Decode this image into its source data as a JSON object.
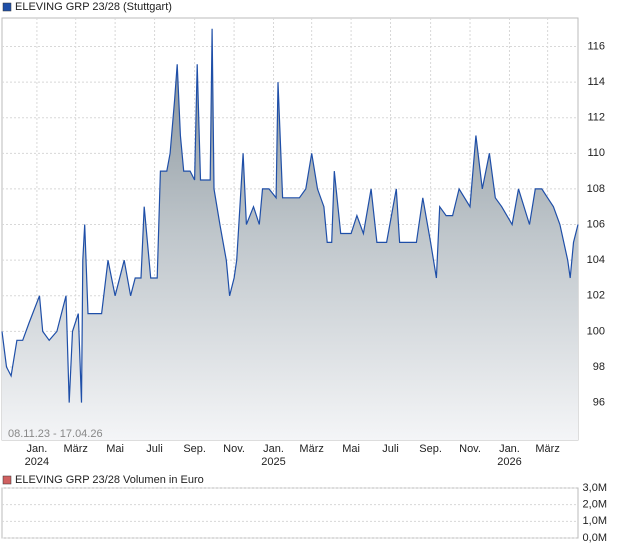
{
  "chart_data": [
    {
      "type": "area",
      "legend": "ELEVING GRP 23/28 (Stuttgart)",
      "range_label": "08.11.23 - 17.04.26",
      "color": "#1f4fa8",
      "grid": true,
      "xlim": [
        "2023-11-08",
        "2026-04-17"
      ],
      "ylim": [
        93.9,
        117.6
      ],
      "yticks": [
        96,
        98,
        100,
        102,
        104,
        106,
        108,
        110,
        112,
        114,
        116
      ],
      "xticks": [
        {
          "value": "2024-01-01",
          "label": "Jan."
        },
        {
          "value": "2024-03-01",
          "label": "März"
        },
        {
          "value": "2024-05-01",
          "label": "Mai"
        },
        {
          "value": "2024-07-01",
          "label": "Juli"
        },
        {
          "value": "2024-09-01",
          "label": "Sep."
        },
        {
          "value": "2024-11-01",
          "label": "Nov."
        },
        {
          "value": "2025-01-01",
          "label": "Jan."
        },
        {
          "value": "2025-03-01",
          "label": "März"
        },
        {
          "value": "2025-05-01",
          "label": "Mai"
        },
        {
          "value": "2025-07-01",
          "label": "Juli"
        },
        {
          "value": "2025-09-01",
          "label": "Sep."
        },
        {
          "value": "2025-11-01",
          "label": "Nov."
        },
        {
          "value": "2026-01-01",
          "label": "Jan."
        },
        {
          "value": "2026-03-01",
          "label": "März"
        }
      ],
      "xtick_years": [
        {
          "value": "2024-01-01",
          "label": "2024"
        },
        {
          "value": "2025-01-01",
          "label": "2025"
        },
        {
          "value": "2026-01-01",
          "label": "2026"
        }
      ],
      "x": [
        "2023-11-08",
        "2023-11-15",
        "2023-11-22",
        "2023-12-01",
        "2023-12-10",
        "2023-12-20",
        "2024-01-05",
        "2024-01-10",
        "2024-01-20",
        "2024-02-01",
        "2024-02-15",
        "2024-02-20",
        "2024-02-25",
        "2024-03-05",
        "2024-03-10",
        "2024-03-12",
        "2024-03-15",
        "2024-03-20",
        "2024-04-10",
        "2024-04-20",
        "2024-05-01",
        "2024-05-15",
        "2024-05-25",
        "2024-06-01",
        "2024-06-10",
        "2024-06-15",
        "2024-06-25",
        "2024-07-05",
        "2024-07-10",
        "2024-07-20",
        "2024-07-25",
        "2024-08-01",
        "2024-08-05",
        "2024-08-10",
        "2024-08-15",
        "2024-08-25",
        "2024-09-01",
        "2024-09-05",
        "2024-09-10",
        "2024-09-25",
        "2024-09-28",
        "2024-10-01",
        "2024-10-10",
        "2024-10-20",
        "2024-10-25",
        "2024-11-01",
        "2024-11-05",
        "2024-11-15",
        "2024-11-20",
        "2024-12-01",
        "2024-12-10",
        "2024-12-15",
        "2024-12-25",
        "2025-01-05",
        "2025-01-08",
        "2025-01-15",
        "2025-02-10",
        "2025-02-20",
        "2025-03-01",
        "2025-03-10",
        "2025-03-20",
        "2025-03-25",
        "2025-04-01",
        "2025-04-05",
        "2025-04-15",
        "2025-05-01",
        "2025-05-10",
        "2025-05-20",
        "2025-06-01",
        "2025-06-10",
        "2025-06-25",
        "2025-07-10",
        "2025-07-15",
        "2025-07-25",
        "2025-08-10",
        "2025-08-20",
        "2025-09-01",
        "2025-09-10",
        "2025-09-15",
        "2025-09-25",
        "2025-10-05",
        "2025-10-15",
        "2025-11-01",
        "2025-11-10",
        "2025-11-20",
        "2025-12-01",
        "2025-12-10",
        "2025-12-20",
        "2026-01-05",
        "2026-01-15",
        "2026-02-01",
        "2026-02-10",
        "2026-02-20",
        "2026-03-01",
        "2026-03-10",
        "2026-03-20",
        "2026-04-01",
        "2026-04-05",
        "2026-04-10",
        "2026-04-17"
      ],
      "values": [
        100,
        98,
        97.5,
        99.5,
        99.5,
        100.5,
        102,
        100,
        99.5,
        100,
        102,
        96,
        100,
        101,
        96,
        104,
        106,
        101,
        101,
        104,
        102,
        104,
        102,
        103,
        103,
        107,
        103,
        103,
        109,
        109,
        110,
        113,
        115,
        111,
        109,
        109,
        108.5,
        115,
        108.5,
        108.5,
        117,
        108,
        106,
        104,
        102,
        103,
        104,
        110,
        106,
        107,
        106,
        108,
        108,
        107.5,
        114,
        107.5,
        107.5,
        108,
        110,
        108,
        107,
        105,
        105,
        109,
        105.5,
        105.5,
        106.5,
        105.5,
        108,
        105,
        105,
        108,
        105,
        105,
        105,
        107.5,
        105,
        103,
        107,
        106.5,
        106.5,
        108,
        107,
        111,
        108,
        110,
        107.5,
        107,
        106,
        108,
        106,
        108,
        108,
        107.5,
        107,
        106,
        104,
        103,
        105,
        106
      ]
    },
    {
      "type": "bar",
      "legend": "ELEVING GRP 23/28 Volumen in Euro",
      "color": "#d06060",
      "ylim": [
        0,
        3000000
      ],
      "yticks": [
        {
          "value": 0,
          "label": "0,0M"
        },
        {
          "value": 1000000,
          "label": "1,0M"
        },
        {
          "value": 2000000,
          "label": "2,0M"
        },
        {
          "value": 3000000,
          "label": "3,0M"
        }
      ]
    }
  ]
}
